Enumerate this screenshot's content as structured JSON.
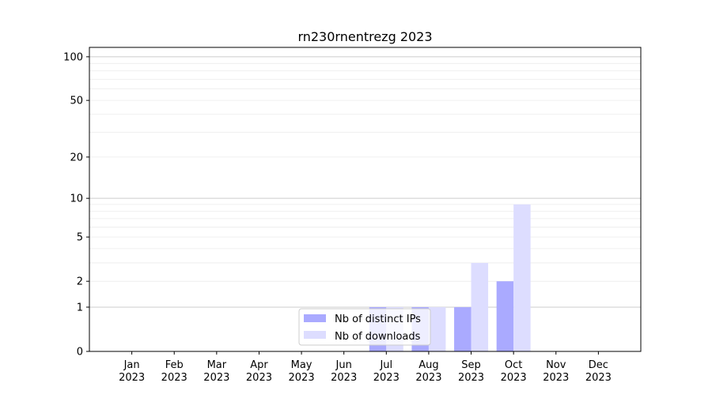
{
  "chart_data": {
    "type": "bar",
    "title": "rn230rnentrezg 2023",
    "xlabel": "",
    "ylabel": "",
    "categories": [
      "Jan\n2023",
      "Feb\n2023",
      "Mar\n2023",
      "Apr\n2023",
      "May\n2023",
      "Jun\n2023",
      "Jul\n2023",
      "Aug\n2023",
      "Sep\n2023",
      "Oct\n2023",
      "Nov\n2023",
      "Dec\n2023"
    ],
    "series": [
      {
        "name": "Nb of distinct IPs",
        "color": "#aaaaff",
        "values": [
          0,
          0,
          0,
          0,
          0,
          0,
          1,
          1,
          1,
          2,
          0,
          0
        ]
      },
      {
        "name": "Nb of downloads",
        "color": "#ddddff",
        "values": [
          0,
          0,
          0,
          0,
          0,
          0,
          1,
          1,
          3,
          9,
          0,
          0
        ]
      }
    ],
    "yscale": "symlog (log10(1+y))",
    "ylim": [
      0,
      116
    ],
    "yticks": [
      0,
      1,
      2,
      5,
      10,
      20,
      50,
      100
    ],
    "ytick_labels": [
      "0",
      "1",
      "2",
      "5",
      "10",
      "20",
      "50",
      "100"
    ],
    "grid": true,
    "legend": "lower center"
  }
}
